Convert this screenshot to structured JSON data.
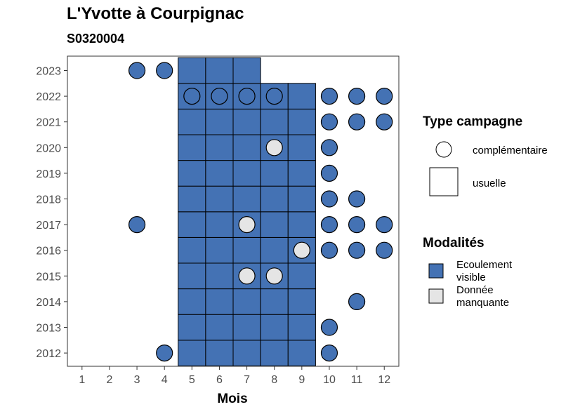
{
  "chart_data": {
    "type": "heatmap",
    "title": "L'Yvotte à Courpignac",
    "subtitle": "S0320004",
    "xlabel": "Mois",
    "ylabel": "",
    "x_ticks": [
      "1",
      "2",
      "3",
      "4",
      "5",
      "6",
      "7",
      "8",
      "9",
      "10",
      "11",
      "12"
    ],
    "y_ticks": [
      "2012",
      "2013",
      "2014",
      "2015",
      "2016",
      "2017",
      "2018",
      "2019",
      "2020",
      "2021",
      "2022",
      "2023"
    ],
    "grid": false,
    "legend_placement": "right",
    "colors": {
      "Ecoulement visible": "#4472b4",
      "Donnée manquante": "#e5e5e5"
    },
    "legend": {
      "type_campagne": {
        "title": "Type campagne",
        "items": [
          "complémentaire",
          "usuelle"
        ]
      },
      "modalites": {
        "title": "Modalités",
        "items": [
          "Ecoulement visible",
          "Donnée manquante"
        ]
      }
    },
    "observations": [
      {
        "year": 2012,
        "month": 4,
        "campagne": "complémentaire",
        "modalite": "Ecoulement visible"
      },
      {
        "year": 2012,
        "month": 5,
        "campagne": "usuelle",
        "modalite": "Ecoulement visible"
      },
      {
        "year": 2012,
        "month": 6,
        "campagne": "usuelle",
        "modalite": "Ecoulement visible"
      },
      {
        "year": 2012,
        "month": 7,
        "campagne": "usuelle",
        "modalite": "Ecoulement visible"
      },
      {
        "year": 2012,
        "month": 8,
        "campagne": "usuelle",
        "modalite": "Ecoulement visible"
      },
      {
        "year": 2012,
        "month": 9,
        "campagne": "usuelle",
        "modalite": "Ecoulement visible"
      },
      {
        "year": 2012,
        "month": 10,
        "campagne": "complémentaire",
        "modalite": "Ecoulement visible"
      },
      {
        "year": 2013,
        "month": 5,
        "campagne": "usuelle",
        "modalite": "Ecoulement visible"
      },
      {
        "year": 2013,
        "month": 6,
        "campagne": "usuelle",
        "modalite": "Ecoulement visible"
      },
      {
        "year": 2013,
        "month": 7,
        "campagne": "usuelle",
        "modalite": "Ecoulement visible"
      },
      {
        "year": 2013,
        "month": 8,
        "campagne": "usuelle",
        "modalite": "Ecoulement visible"
      },
      {
        "year": 2013,
        "month": 9,
        "campagne": "usuelle",
        "modalite": "Ecoulement visible"
      },
      {
        "year": 2013,
        "month": 10,
        "campagne": "complémentaire",
        "modalite": "Ecoulement visible"
      },
      {
        "year": 2014,
        "month": 5,
        "campagne": "usuelle",
        "modalite": "Ecoulement visible"
      },
      {
        "year": 2014,
        "month": 6,
        "campagne": "usuelle",
        "modalite": "Ecoulement visible"
      },
      {
        "year": 2014,
        "month": 7,
        "campagne": "usuelle",
        "modalite": "Ecoulement visible"
      },
      {
        "year": 2014,
        "month": 8,
        "campagne": "usuelle",
        "modalite": "Ecoulement visible"
      },
      {
        "year": 2014,
        "month": 9,
        "campagne": "usuelle",
        "modalite": "Ecoulement visible"
      },
      {
        "year": 2014,
        "month": 11,
        "campagne": "complémentaire",
        "modalite": "Ecoulement visible"
      },
      {
        "year": 2015,
        "month": 5,
        "campagne": "usuelle",
        "modalite": "Ecoulement visible"
      },
      {
        "year": 2015,
        "month": 6,
        "campagne": "usuelle",
        "modalite": "Ecoulement visible"
      },
      {
        "year": 2015,
        "month": 7,
        "campagne": "usuelle",
        "modalite": "Ecoulement visible"
      },
      {
        "year": 2015,
        "month": 7,
        "campagne": "complémentaire",
        "modalite": "Donnée manquante"
      },
      {
        "year": 2015,
        "month": 8,
        "campagne": "usuelle",
        "modalite": "Ecoulement visible"
      },
      {
        "year": 2015,
        "month": 8,
        "campagne": "complémentaire",
        "modalite": "Donnée manquante"
      },
      {
        "year": 2015,
        "month": 9,
        "campagne": "usuelle",
        "modalite": "Ecoulement visible"
      },
      {
        "year": 2016,
        "month": 5,
        "campagne": "usuelle",
        "modalite": "Ecoulement visible"
      },
      {
        "year": 2016,
        "month": 6,
        "campagne": "usuelle",
        "modalite": "Ecoulement visible"
      },
      {
        "year": 2016,
        "month": 7,
        "campagne": "usuelle",
        "modalite": "Ecoulement visible"
      },
      {
        "year": 2016,
        "month": 8,
        "campagne": "usuelle",
        "modalite": "Ecoulement visible"
      },
      {
        "year": 2016,
        "month": 9,
        "campagne": "usuelle",
        "modalite": "Ecoulement visible"
      },
      {
        "year": 2016,
        "month": 9,
        "campagne": "complémentaire",
        "modalite": "Donnée manquante"
      },
      {
        "year": 2016,
        "month": 10,
        "campagne": "complémentaire",
        "modalite": "Ecoulement visible"
      },
      {
        "year": 2016,
        "month": 11,
        "campagne": "complémentaire",
        "modalite": "Ecoulement visible"
      },
      {
        "year": 2016,
        "month": 12,
        "campagne": "complémentaire",
        "modalite": "Ecoulement visible"
      },
      {
        "year": 2017,
        "month": 3,
        "campagne": "complémentaire",
        "modalite": "Ecoulement visible"
      },
      {
        "year": 2017,
        "month": 5,
        "campagne": "usuelle",
        "modalite": "Ecoulement visible"
      },
      {
        "year": 2017,
        "month": 6,
        "campagne": "usuelle",
        "modalite": "Ecoulement visible"
      },
      {
        "year": 2017,
        "month": 7,
        "campagne": "usuelle",
        "modalite": "Ecoulement visible"
      },
      {
        "year": 2017,
        "month": 7,
        "campagne": "complémentaire",
        "modalite": "Donnée manquante"
      },
      {
        "year": 2017,
        "month": 8,
        "campagne": "usuelle",
        "modalite": "Ecoulement visible"
      },
      {
        "year": 2017,
        "month": 9,
        "campagne": "usuelle",
        "modalite": "Ecoulement visible"
      },
      {
        "year": 2017,
        "month": 10,
        "campagne": "complémentaire",
        "modalite": "Ecoulement visible"
      },
      {
        "year": 2017,
        "month": 11,
        "campagne": "complémentaire",
        "modalite": "Ecoulement visible"
      },
      {
        "year": 2017,
        "month": 12,
        "campagne": "complémentaire",
        "modalite": "Ecoulement visible"
      },
      {
        "year": 2018,
        "month": 5,
        "campagne": "usuelle",
        "modalite": "Ecoulement visible"
      },
      {
        "year": 2018,
        "month": 6,
        "campagne": "usuelle",
        "modalite": "Ecoulement visible"
      },
      {
        "year": 2018,
        "month": 7,
        "campagne": "usuelle",
        "modalite": "Ecoulement visible"
      },
      {
        "year": 2018,
        "month": 8,
        "campagne": "usuelle",
        "modalite": "Ecoulement visible"
      },
      {
        "year": 2018,
        "month": 9,
        "campagne": "usuelle",
        "modalite": "Ecoulement visible"
      },
      {
        "year": 2018,
        "month": 10,
        "campagne": "complémentaire",
        "modalite": "Ecoulement visible"
      },
      {
        "year": 2018,
        "month": 11,
        "campagne": "complémentaire",
        "modalite": "Ecoulement visible"
      },
      {
        "year": 2019,
        "month": 5,
        "campagne": "usuelle",
        "modalite": "Ecoulement visible"
      },
      {
        "year": 2019,
        "month": 6,
        "campagne": "usuelle",
        "modalite": "Ecoulement visible"
      },
      {
        "year": 2019,
        "month": 7,
        "campagne": "usuelle",
        "modalite": "Ecoulement visible"
      },
      {
        "year": 2019,
        "month": 8,
        "campagne": "usuelle",
        "modalite": "Ecoulement visible"
      },
      {
        "year": 2019,
        "month": 9,
        "campagne": "usuelle",
        "modalite": "Ecoulement visible"
      },
      {
        "year": 2019,
        "month": 10,
        "campagne": "complémentaire",
        "modalite": "Ecoulement visible"
      },
      {
        "year": 2020,
        "month": 5,
        "campagne": "usuelle",
        "modalite": "Ecoulement visible"
      },
      {
        "year": 2020,
        "month": 6,
        "campagne": "usuelle",
        "modalite": "Ecoulement visible"
      },
      {
        "year": 2020,
        "month": 7,
        "campagne": "usuelle",
        "modalite": "Ecoulement visible"
      },
      {
        "year": 2020,
        "month": 8,
        "campagne": "usuelle",
        "modalite": "Ecoulement visible"
      },
      {
        "year": 2020,
        "month": 8,
        "campagne": "complémentaire",
        "modalite": "Donnée manquante"
      },
      {
        "year": 2020,
        "month": 9,
        "campagne": "usuelle",
        "modalite": "Ecoulement visible"
      },
      {
        "year": 2020,
        "month": 10,
        "campagne": "complémentaire",
        "modalite": "Ecoulement visible"
      },
      {
        "year": 2021,
        "month": 5,
        "campagne": "usuelle",
        "modalite": "Ecoulement visible"
      },
      {
        "year": 2021,
        "month": 6,
        "campagne": "usuelle",
        "modalite": "Ecoulement visible"
      },
      {
        "year": 2021,
        "month": 7,
        "campagne": "usuelle",
        "modalite": "Ecoulement visible"
      },
      {
        "year": 2021,
        "month": 8,
        "campagne": "usuelle",
        "modalite": "Ecoulement visible"
      },
      {
        "year": 2021,
        "month": 9,
        "campagne": "usuelle",
        "modalite": "Ecoulement visible"
      },
      {
        "year": 2021,
        "month": 10,
        "campagne": "complémentaire",
        "modalite": "Ecoulement visible"
      },
      {
        "year": 2021,
        "month": 11,
        "campagne": "complémentaire",
        "modalite": "Ecoulement visible"
      },
      {
        "year": 2021,
        "month": 12,
        "campagne": "complémentaire",
        "modalite": "Ecoulement visible"
      },
      {
        "year": 2022,
        "month": 5,
        "campagne": "usuelle",
        "modalite": "Ecoulement visible"
      },
      {
        "year": 2022,
        "month": 5,
        "campagne": "complémentaire",
        "modalite": "Ecoulement visible"
      },
      {
        "year": 2022,
        "month": 6,
        "campagne": "usuelle",
        "modalite": "Ecoulement visible"
      },
      {
        "year": 2022,
        "month": 6,
        "campagne": "complémentaire",
        "modalite": "Ecoulement visible"
      },
      {
        "year": 2022,
        "month": 7,
        "campagne": "usuelle",
        "modalite": "Ecoulement visible"
      },
      {
        "year": 2022,
        "month": 7,
        "campagne": "complémentaire",
        "modalite": "Ecoulement visible"
      },
      {
        "year": 2022,
        "month": 8,
        "campagne": "usuelle",
        "modalite": "Ecoulement visible"
      },
      {
        "year": 2022,
        "month": 8,
        "campagne": "complémentaire",
        "modalite": "Ecoulement visible"
      },
      {
        "year": 2022,
        "month": 9,
        "campagne": "usuelle",
        "modalite": "Ecoulement visible"
      },
      {
        "year": 2022,
        "month": 10,
        "campagne": "complémentaire",
        "modalite": "Ecoulement visible"
      },
      {
        "year": 2022,
        "month": 11,
        "campagne": "complémentaire",
        "modalite": "Ecoulement visible"
      },
      {
        "year": 2022,
        "month": 12,
        "campagne": "complémentaire",
        "modalite": "Ecoulement visible"
      },
      {
        "year": 2023,
        "month": 3,
        "campagne": "complémentaire",
        "modalite": "Ecoulement visible"
      },
      {
        "year": 2023,
        "month": 4,
        "campagne": "complémentaire",
        "modalite": "Ecoulement visible"
      },
      {
        "year": 2023,
        "month": 5,
        "campagne": "usuelle",
        "modalite": "Ecoulement visible"
      },
      {
        "year": 2023,
        "month": 6,
        "campagne": "usuelle",
        "modalite": "Ecoulement visible"
      },
      {
        "year": 2023,
        "month": 7,
        "campagne": "usuelle",
        "modalite": "Ecoulement visible"
      }
    ]
  }
}
